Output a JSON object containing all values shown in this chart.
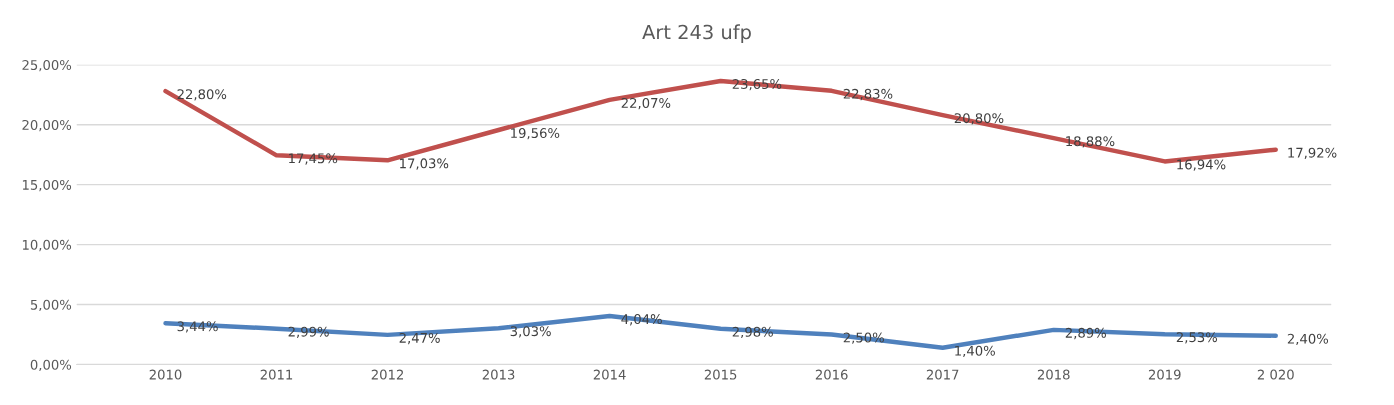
{
  "chart_data": {
    "type": "line",
    "title": "Art 243 ufp",
    "categories": [
      "2010",
      "2011",
      "2012",
      "2013",
      "2014",
      "2015",
      "2016",
      "2017",
      "2018",
      "2019",
      "2 020"
    ],
    "series": [
      {
        "color": "#c0504d",
        "values": [
          22.8,
          17.45,
          17.03,
          19.56,
          22.07,
          23.65,
          22.83,
          20.8,
          18.88,
          16.94,
          17.92
        ],
        "value_labels": [
          "22,80%",
          "17,45%",
          "17,03%",
          "19,56%",
          "22,07%",
          "23,65%",
          "22,83%",
          "20,80%",
          "18,88%",
          "16,94%",
          "17,92%"
        ]
      },
      {
        "color": "#4f81bd",
        "values": [
          3.44,
          2.99,
          2.47,
          3.03,
          4.04,
          2.98,
          2.5,
          1.4,
          2.89,
          2.53,
          2.4
        ],
        "value_labels": [
          "3,44%",
          "2,99%",
          "2,47%",
          "3,03%",
          "4,04%",
          "2,98%",
          "2,50%",
          "1,40%",
          "2,89%",
          "2,53%",
          "2,40%"
        ]
      }
    ],
    "ylim": [
      0,
      25
    ],
    "yticks": [
      {
        "value": 0,
        "label": "0,00%"
      },
      {
        "value": 5,
        "label": "5,00%"
      },
      {
        "value": 10,
        "label": "10,00%"
      },
      {
        "value": 15,
        "label": "15,00%"
      },
      {
        "value": 20,
        "label": "20,00%"
      },
      {
        "value": 25,
        "label": "25,00%"
      }
    ],
    "grid": "y",
    "legend": false,
    "marker": "none",
    "line_style": "solid"
  }
}
